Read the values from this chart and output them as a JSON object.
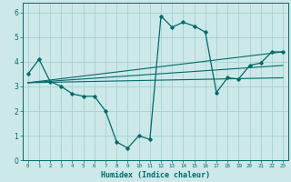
{
  "xlabel": "Humidex (Indice chaleur)",
  "ylabel": "",
  "xlim": [
    -0.5,
    23.5
  ],
  "ylim": [
    0,
    6.4
  ],
  "xticks": [
    0,
    1,
    2,
    3,
    4,
    5,
    6,
    7,
    8,
    9,
    10,
    11,
    12,
    13,
    14,
    15,
    16,
    17,
    18,
    19,
    20,
    21,
    22,
    23
  ],
  "yticks": [
    0,
    1,
    2,
    3,
    4,
    5,
    6
  ],
  "bg_color": "#cce8e8",
  "line_color": "#006b6b",
  "line1_x": [
    0,
    1,
    2,
    3,
    4,
    5,
    6,
    7,
    8,
    9,
    10,
    11,
    12,
    13,
    14,
    15,
    16,
    17,
    18,
    19,
    20,
    21,
    22,
    23
  ],
  "line1_y": [
    3.5,
    4.1,
    3.2,
    3.0,
    2.7,
    2.6,
    2.6,
    2.0,
    0.75,
    0.5,
    1.0,
    0.85,
    5.85,
    5.4,
    5.6,
    5.45,
    5.2,
    2.75,
    3.35,
    3.3,
    3.85,
    3.95,
    4.4,
    4.4
  ],
  "line2_x": [
    0,
    23
  ],
  "line2_y": [
    3.15,
    3.35
  ],
  "line3_x": [
    0,
    23
  ],
  "line3_y": [
    3.15,
    3.85
  ],
  "line4_x": [
    0,
    23
  ],
  "line4_y": [
    3.15,
    4.4
  ]
}
